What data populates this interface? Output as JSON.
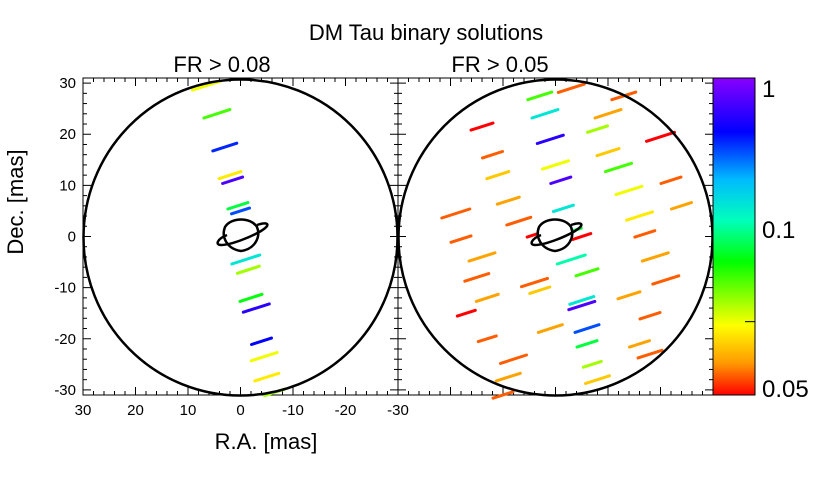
{
  "chart_data": [
    {
      "type": "scatter",
      "title": "DM Tau binary solutions",
      "subtitle": "FR > 0.08",
      "xlabel": "R.A. [mas]",
      "ylabel": "Dec. [mas]",
      "xlim": [
        30,
        -30
      ],
      "ylim": [
        -31,
        31
      ],
      "x_ticks": [
        30,
        20,
        10,
        0,
        -10,
        -20,
        -30
      ],
      "y_ticks": [
        30,
        20,
        10,
        0,
        -10,
        -20,
        -30
      ],
      "points": [
        {
          "x": 6.5,
          "y": 29.5,
          "fr": 0.1
        },
        {
          "x": 4.5,
          "y": 24.0,
          "fr": 0.15
        },
        {
          "x": 3.0,
          "y": 17.5,
          "fr": 0.55
        },
        {
          "x": 2.0,
          "y": 12.0,
          "fr": 0.09
        },
        {
          "x": 1.5,
          "y": 11.0,
          "fr": 0.8
        },
        {
          "x": 0.5,
          "y": 6.0,
          "fr": 0.2
        },
        {
          "x": 0.0,
          "y": 5.0,
          "fr": 0.5
        },
        {
          "x": -1.0,
          "y": -4.5,
          "fr": 0.3
        },
        {
          "x": -1.5,
          "y": -6.5,
          "fr": 0.12
        },
        {
          "x": -2.0,
          "y": -12.0,
          "fr": 0.18
        },
        {
          "x": -3.0,
          "y": -14.0,
          "fr": 0.7
        },
        {
          "x": -4.0,
          "y": -20.5,
          "fr": 0.6
        },
        {
          "x": -4.5,
          "y": -23.5,
          "fr": 0.1
        },
        {
          "x": -5.0,
          "y": -27.5,
          "fr": 0.09
        },
        {
          "x": -6.5,
          "y": -30.5,
          "fr": 0.12
        }
      ]
    },
    {
      "type": "scatter",
      "subtitle": "FR > 0.05",
      "xlim": [
        30,
        -30
      ],
      "ylim": [
        -31,
        31
      ],
      "points": [
        {
          "x": -3.0,
          "y": 29.0,
          "fr": 0.06
        },
        {
          "x": 3.0,
          "y": 27.5,
          "fr": 0.15
        },
        {
          "x": -13.0,
          "y": 27.5,
          "fr": 0.06
        },
        {
          "x": 2.0,
          "y": 24.0,
          "fr": 0.3
        },
        {
          "x": -10.0,
          "y": 24.0,
          "fr": 0.07
        },
        {
          "x": 14.0,
          "y": 21.5,
          "fr": 0.05
        },
        {
          "x": 1.0,
          "y": 19.0,
          "fr": 0.7
        },
        {
          "x": -8.0,
          "y": 21.0,
          "fr": 0.12
        },
        {
          "x": -20.0,
          "y": 19.5,
          "fr": 0.05
        },
        {
          "x": 12.0,
          "y": 16.0,
          "fr": 0.06
        },
        {
          "x": 0.0,
          "y": 14.0,
          "fr": 0.1
        },
        {
          "x": -10.0,
          "y": 16.5,
          "fr": 0.08
        },
        {
          "x": 11.0,
          "y": 12.0,
          "fr": 0.08
        },
        {
          "x": -1.0,
          "y": 11.0,
          "fr": 0.8
        },
        {
          "x": -12.0,
          "y": 13.5,
          "fr": 0.15
        },
        {
          "x": -22.0,
          "y": 11.0,
          "fr": 0.06
        },
        {
          "x": 9.0,
          "y": 7.0,
          "fr": 0.07
        },
        {
          "x": -1.5,
          "y": 5.5,
          "fr": 0.3
        },
        {
          "x": -14.0,
          "y": 9.0,
          "fr": 0.1
        },
        {
          "x": -24.0,
          "y": 6.0,
          "fr": 0.07
        },
        {
          "x": 19.0,
          "y": 4.5,
          "fr": 0.06
        },
        {
          "x": 7.0,
          "y": 3.0,
          "fr": 0.06
        },
        {
          "x": -3.0,
          "y": 1.0,
          "fr": 0.2
        },
        {
          "x": -16.0,
          "y": 4.0,
          "fr": 0.09
        },
        {
          "x": 18.0,
          "y": -0.5,
          "fr": 0.06
        },
        {
          "x": 3.5,
          "y": 0.5,
          "fr": 0.05
        },
        {
          "x": -5.0,
          "y": 0.0,
          "fr": 0.05
        },
        {
          "x": -17.0,
          "y": 0.5,
          "fr": 0.06
        },
        {
          "x": 14.0,
          "y": -4.0,
          "fr": 0.07
        },
        {
          "x": -3.0,
          "y": -4.5,
          "fr": 0.25
        },
        {
          "x": -19.0,
          "y": -4.0,
          "fr": 0.07
        },
        {
          "x": 15.0,
          "y": -8.0,
          "fr": 0.06
        },
        {
          "x": 4.0,
          "y": -9.0,
          "fr": 0.06
        },
        {
          "x": -6.0,
          "y": -7.0,
          "fr": 0.15
        },
        {
          "x": -21.0,
          "y": -8.5,
          "fr": 0.06
        },
        {
          "x": 13.0,
          "y": -12.0,
          "fr": 0.07
        },
        {
          "x": 3.0,
          "y": -10.5,
          "fr": 0.08
        },
        {
          "x": -5.0,
          "y": -12.5,
          "fr": 0.3
        },
        {
          "x": -14.0,
          "y": -11.5,
          "fr": 0.07
        },
        {
          "x": 17.0,
          "y": -15.0,
          "fr": 0.05
        },
        {
          "x": -5.0,
          "y": -13.5,
          "fr": 0.8
        },
        {
          "x": -18.0,
          "y": -15.5,
          "fr": 0.06
        },
        {
          "x": 13.0,
          "y": -20.0,
          "fr": 0.06
        },
        {
          "x": 1.0,
          "y": -18.0,
          "fr": 0.07
        },
        {
          "x": -6.0,
          "y": -18.0,
          "fr": 0.5
        },
        {
          "x": -16.0,
          "y": -21.0,
          "fr": 0.07
        },
        {
          "x": 8.0,
          "y": -24.0,
          "fr": 0.06
        },
        {
          "x": -6.0,
          "y": -21.0,
          "fr": 0.2
        },
        {
          "x": -18.0,
          "y": -23.0,
          "fr": 0.06
        },
        {
          "x": 9.0,
          "y": -27.5,
          "fr": 0.07
        },
        {
          "x": -7.0,
          "y": -25.0,
          "fr": 0.12
        },
        {
          "x": -8.0,
          "y": -28.0,
          "fr": 0.08
        },
        {
          "x": 10.0,
          "y": -31.0,
          "fr": 0.06
        }
      ]
    }
  ],
  "colorbar": {
    "scale": "log",
    "min": 0.05,
    "max": 1,
    "labels": [
      "1",
      "0.1",
      "0.05"
    ],
    "label_values": [
      1,
      0.1,
      0.05
    ],
    "colors": [
      "#8800ff",
      "#0000ff",
      "#00bbff",
      "#00ffbb",
      "#00ff00",
      "#ffff00",
      "#ff9900",
      "#ff0000"
    ]
  }
}
